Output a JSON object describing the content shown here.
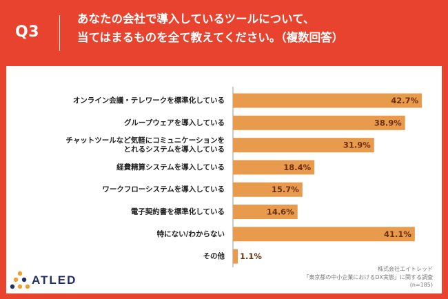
{
  "header": {
    "question_number": "Q3",
    "title_line1": "あなたの会社で導入しているツールについて、",
    "title_line2": "当てはまるものを全て教えてください。（複数回答）"
  },
  "chart_data": {
    "type": "bar",
    "orientation": "horizontal",
    "title": "あなたの会社で導入しているツールについて、当てはまるものを全て教えてください。（複数回答）",
    "categories": [
      [
        "オンライン会議・テレワークを標準化している"
      ],
      [
        "グループウェアを導入している"
      ],
      [
        "チャットツールなど気軽にコミュニケーションを",
        "とれるシステムを導入している"
      ],
      [
        "経費精算システムを導入している"
      ],
      [
        "ワークフローシステムを導入している"
      ],
      [
        "電子契約書を標準化している"
      ],
      [
        "特にない/わからない"
      ],
      [
        "その他"
      ]
    ],
    "values": [
      42.7,
      38.9,
      31.9,
      18.4,
      15.7,
      14.6,
      41.1,
      1.1
    ],
    "value_labels": [
      "42.7%",
      "38.9%",
      "31.9%",
      "18.4%",
      "15.7%",
      "14.6%",
      "41.1%",
      "1.1%"
    ],
    "unit": "%",
    "xlim": [
      0,
      50
    ],
    "bar_color": "#e89a4d"
  },
  "footer": {
    "brand": "ATLED",
    "company": "株式会社エイトレッド",
    "survey": "「東京都の中小企業におけるDX実態」に関する調査",
    "sample": "(n=185)"
  },
  "colors": {
    "background": "#e8432f",
    "panel": "#ffffff",
    "bar": "#e89a4d",
    "value_text": "#6b2f0e",
    "logo_navy": "#1f2e64",
    "logo_orange": "#f0a030"
  }
}
